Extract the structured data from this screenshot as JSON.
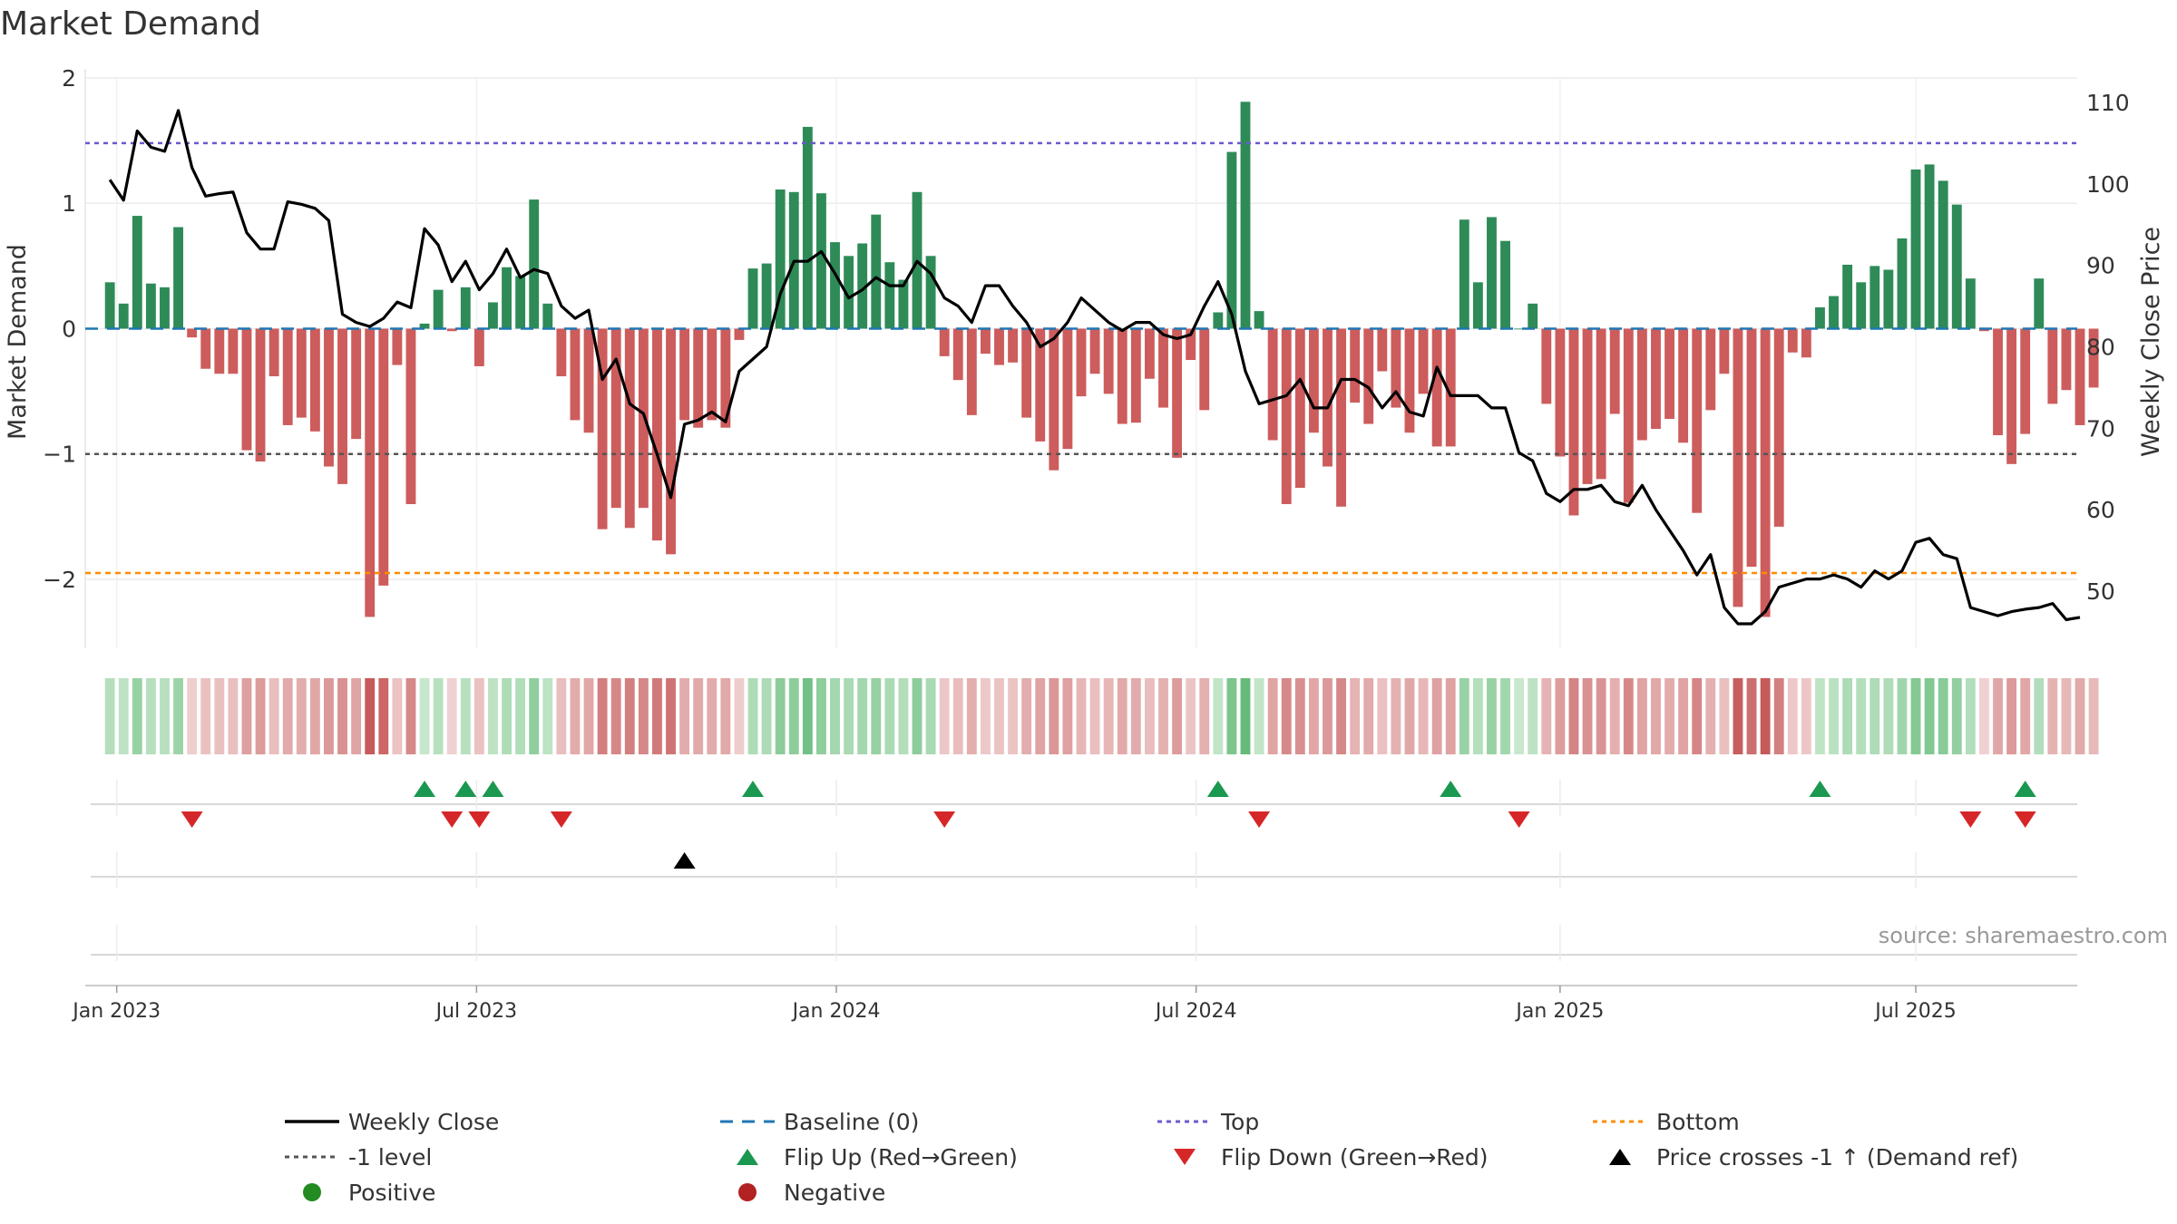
{
  "chart_data": {
    "type": "bar",
    "title": "Market Demand",
    "ylabel": "Market Demand",
    "ylabel_right": "Weekly Close Price",
    "ylim": [
      -2.55,
      2.0
    ],
    "ylim_right": [
      43.0,
      113.0
    ],
    "yticks": [
      -2,
      -1,
      0,
      1,
      2
    ],
    "yticks_right": [
      50,
      60,
      70,
      80,
      90,
      100,
      110
    ],
    "x_range": [
      -1.8,
      143.8
    ],
    "xticks": [
      {
        "week": 0.5,
        "label": "Jan 2023"
      },
      {
        "week": 26.8,
        "label": "Jul 2023"
      },
      {
        "week": 53.1,
        "label": "Jan 2024"
      },
      {
        "week": 79.4,
        "label": "Jul 2024"
      },
      {
        "week": 106.0,
        "label": "Jan 2025"
      },
      {
        "week": 132.0,
        "label": "Jul 2025"
      }
    ],
    "reference_lines": {
      "top": 1.48,
      "minus_one": -1.0,
      "bottom": -1.95
    },
    "demand": [
      0.37,
      0.2,
      0.9,
      0.36,
      0.33,
      0.81,
      -0.07,
      -0.32,
      -0.36,
      -0.36,
      -0.97,
      -1.06,
      -0.38,
      -0.77,
      -0.71,
      -0.82,
      -1.1,
      -1.24,
      -0.88,
      -2.3,
      -2.05,
      -0.29,
      -1.4,
      0.04,
      0.31,
      -0.02,
      0.33,
      -0.3,
      0.21,
      0.49,
      0.42,
      1.03,
      0.2,
      -0.38,
      -0.73,
      -0.83,
      -1.6,
      -1.43,
      -1.59,
      -1.43,
      -1.69,
      -1.8,
      -0.73,
      -0.79,
      -0.73,
      -0.79,
      -0.09,
      0.48,
      0.52,
      1.11,
      1.09,
      1.61,
      1.08,
      0.69,
      0.58,
      0.68,
      0.91,
      0.53,
      0.39,
      1.09,
      0.58,
      -0.22,
      -0.41,
      -0.69,
      -0.2,
      -0.29,
      -0.27,
      -0.71,
      -0.9,
      -1.13,
      -0.96,
      -0.54,
      -0.36,
      -0.52,
      -0.76,
      -0.75,
      -0.4,
      -0.63,
      -1.03,
      -0.25,
      -0.65,
      0.13,
      1.41,
      1.81,
      0.14,
      -0.89,
      -1.4,
      -1.27,
      -0.83,
      -1.1,
      -1.42,
      -0.59,
      -0.76,
      -0.34,
      -0.63,
      -0.83,
      -0.52,
      -0.94,
      -0.94,
      0.87,
      0.37,
      0.89,
      0.7,
      0.0,
      0.2,
      -0.6,
      -1.02,
      -1.49,
      -1.24,
      -1.2,
      -0.68,
      -1.39,
      -0.89,
      -0.8,
      -0.72,
      -0.91,
      -1.47,
      -0.65,
      -0.36,
      -2.22,
      -1.9,
      -2.3,
      -1.58,
      -0.19,
      -0.23,
      0.17,
      0.26,
      0.51,
      0.37,
      0.5,
      0.47,
      0.72,
      1.27,
      1.31,
      1.18,
      0.99,
      0.4,
      -0.02,
      -0.85,
      -1.08,
      -0.84,
      0.4,
      -0.6,
      -0.49,
      -0.77,
      -0.47
    ],
    "weekly_close": [
      100.5,
      98.0,
      106.5,
      104.5,
      104.0,
      109.0,
      102.0,
      98.5,
      98.8,
      99.0,
      94.0,
      92.0,
      92.0,
      97.8,
      97.5,
      97.0,
      95.5,
      84.0,
      83.0,
      82.5,
      83.5,
      85.5,
      84.8,
      94.5,
      92.5,
      88.0,
      90.5,
      87.0,
      89.0,
      92.0,
      88.5,
      89.5,
      89.0,
      85.0,
      83.5,
      84.5,
      76.0,
      78.5,
      73.0,
      71.8,
      66.8,
      61.5,
      70.5,
      71.0,
      72.0,
      70.8,
      77.0,
      78.5,
      80.0,
      86.5,
      90.5,
      90.5,
      91.7,
      89.0,
      86.0,
      87.0,
      88.5,
      87.5,
      87.5,
      90.5,
      89.0,
      86.0,
      85.0,
      83.0,
      87.5,
      87.5,
      85.0,
      83.0,
      80.0,
      81.0,
      83.0,
      86.0,
      84.5,
      83.0,
      82.0,
      83.0,
      83.0,
      81.5,
      81.0,
      81.5,
      85.0,
      88.0,
      84.0,
      77.0,
      73.0,
      73.5,
      74.0,
      76.0,
      72.5,
      72.5,
      76.0,
      76.0,
      75.0,
      72.5,
      74.5,
      72.0,
      71.5,
      77.5,
      74.0,
      74.0,
      74.0,
      72.5,
      72.5,
      67.0,
      66.0,
      62.0,
      61.0,
      62.5,
      62.5,
      63.0,
      61.0,
      60.5,
      63.0,
      60.0,
      57.5,
      55.0,
      52.0,
      54.5,
      48.0,
      46.0,
      46.0,
      47.5,
      50.5,
      51.0,
      51.5,
      51.5,
      52.0,
      51.5,
      50.5,
      52.5,
      51.5,
      52.5,
      56.0,
      56.5,
      54.5,
      54.0,
      48.0,
      47.5,
      47.0,
      47.5,
      47.8,
      48.0,
      48.5,
      46.5,
      46.8
    ],
    "color_strip_values": [
      0.37,
      0.2,
      0.9,
      0.36,
      0.33,
      0.81,
      -0.07,
      -0.32,
      -0.36,
      -0.36,
      -0.97,
      -1.06,
      -0.38,
      -0.77,
      -0.71,
      -0.82,
      -1.1,
      -1.24,
      -0.88,
      -2.3,
      -2.05,
      -0.29,
      -1.4,
      0.04,
      0.31,
      -0.02,
      0.33,
      -0.3,
      0.21,
      0.49,
      0.42,
      1.03,
      0.2,
      -0.38,
      -0.73,
      -0.83,
      -1.6,
      -1.43,
      -1.59,
      -1.43,
      -1.69,
      -1.8,
      -0.73,
      -0.79,
      -0.73,
      -0.79,
      -0.09,
      0.48,
      0.52,
      1.11,
      1.09,
      1.61,
      1.08,
      0.69,
      0.58,
      0.68,
      0.91,
      0.53,
      0.39,
      1.09,
      0.58,
      -0.22,
      -0.41,
      -0.69,
      -0.2,
      -0.29,
      -0.27,
      -0.71,
      -0.9,
      -1.13,
      -0.96,
      -0.54,
      -0.36,
      -0.52,
      -0.76,
      -0.75,
      -0.4,
      -0.63,
      -1.03,
      -0.25,
      -0.65,
      0.13,
      1.41,
      1.81,
      0.14,
      -0.89,
      -1.4,
      -1.27,
      -0.83,
      -1.1,
      -1.42,
      -0.59,
      -0.76,
      -0.34,
      -0.63,
      -0.83,
      -0.52,
      -0.94,
      -0.94,
      0.87,
      0.37,
      0.89,
      0.7,
      0.0,
      0.2,
      -0.6,
      -1.02,
      -1.49,
      -1.24,
      -1.2,
      -0.68,
      -1.39,
      -0.89,
      -0.8,
      -0.72,
      -0.91,
      -1.47,
      -0.65,
      -0.36,
      -2.22,
      -1.9,
      -2.3,
      -1.58,
      -0.19,
      -0.23,
      0.17,
      0.26,
      0.51,
      0.37,
      0.5,
      0.47,
      0.72,
      1.27,
      1.31,
      1.18,
      0.99,
      0.4,
      -0.02,
      -0.85,
      -1.08,
      -0.84,
      0.4,
      -0.6,
      -0.49,
      -0.77,
      -0.47
    ],
    "flip_up_weeks": [
      23,
      26,
      28,
      47,
      81,
      98,
      125,
      140
    ],
    "flip_down_weeks": [
      6,
      25,
      27,
      33,
      61,
      84,
      103,
      136,
      140
    ],
    "price_cross_weeks": [
      42
    ],
    "legend": [
      {
        "key": "weekly_close",
        "label": "Weekly Close"
      },
      {
        "key": "baseline",
        "label": "Baseline (0)"
      },
      {
        "key": "top",
        "label": "Top"
      },
      {
        "key": "bottom",
        "label": "Bottom"
      },
      {
        "key": "minus_one",
        "label": "-1 level"
      },
      {
        "key": "flip_up",
        "label": "Flip Up (Red→Green)"
      },
      {
        "key": "flip_down",
        "label": "Flip Down (Green→Red)"
      },
      {
        "key": "price_cross",
        "label": "Price crosses -1 ↑ (Demand ref)"
      },
      {
        "key": "positive",
        "label": "Positive"
      },
      {
        "key": "negative",
        "label": "Negative"
      }
    ],
    "legend_position": "bottom"
  },
  "source_note": "source: sharemaestro.com",
  "colors": {
    "positive_bar": "#2e8b57",
    "negative_bar": "#cd5c5c",
    "close_line": "#000000",
    "baseline": "#1f77b4",
    "top": "#6a5acd",
    "bottom": "#ff8c00",
    "minus_one": "#555555",
    "flip_up": "#1a9850",
    "flip_down": "#d62728",
    "price_cross": "#000000",
    "positive_dot": "#228b22",
    "negative_dot": "#b22222"
  }
}
